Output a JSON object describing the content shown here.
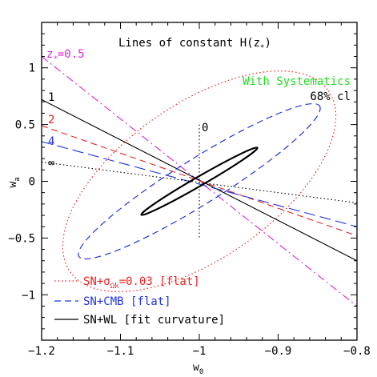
{
  "chart_data": {
    "type": "line",
    "title": "Lines of constant H(z",
    "title_sub": "*",
    "title_end": ")",
    "xlabel": "w",
    "xlabel_sub": "0",
    "ylabel": "w",
    "ylabel_sub": "a",
    "xlim": [
      -1.2,
      -0.8
    ],
    "ylim": [
      -1.4,
      1.4
    ],
    "xticks": [
      -1.2,
      -1.1,
      -1,
      -0.9,
      -0.8
    ],
    "xtick_labels": [
      "−1.2",
      "−1.1",
      "−1",
      "−0.9",
      "−0.8"
    ],
    "yticks": [
      1,
      0.5,
      0,
      -0.5,
      -1
    ],
    "ytick_labels": [
      "1",
      "0.5",
      "0",
      "−0.5",
      "−1"
    ],
    "systematics_label": "With Systematics",
    "systematics_color": "#22dd22",
    "cl_label": "68% cl",
    "lines_of_constant_H": [
      {
        "label": "z",
        "label_sub": "*",
        "label_end": "=0.5",
        "color": "#dd22dd",
        "dash": "dashdot",
        "x": [
          -1.2,
          -0.8
        ],
        "y": [
          1.1,
          -1.1
        ]
      },
      {
        "label": "1",
        "color": "#000000",
        "dash": "solid",
        "x": [
          -1.2,
          -0.8
        ],
        "y": [
          0.72,
          -0.7
        ]
      },
      {
        "label": "2",
        "color": "#ee2222",
        "dash": "dashed",
        "x": [
          -1.2,
          -0.8
        ],
        "y": [
          0.49,
          -0.48
        ]
      },
      {
        "label": "4",
        "color": "#2233dd",
        "dash": "longdash",
        "x": [
          -1.2,
          -0.8
        ],
        "y": [
          0.35,
          -0.4
        ]
      },
      {
        "label": "∞",
        "color": "#000000",
        "dash": "dotted",
        "x": [
          -1.2,
          -0.8
        ],
        "y": [
          0.17,
          -0.19
        ]
      },
      {
        "label": "0",
        "color": "#000000",
        "dash": "dotted",
        "x": [
          -1.0,
          -1.0
        ],
        "y": [
          0.5,
          -0.5
        ]
      }
    ],
    "series": [
      {
        "name": "SN+σ",
        "name_sub": "Ωk",
        "name_end": "=0.03 [flat]",
        "color": "#ee2222",
        "dash": "dotted",
        "center": [
          -1.0,
          0.0
        ],
        "semi_axes": [
          0.2,
          0.68
        ],
        "rotation_deg": -35,
        "stroke_width": 1.2
      },
      {
        "name": "SN+CMB [flat]",
        "color": "#2233dd",
        "dash": "dashed",
        "center": [
          -1.0,
          0.0
        ],
        "semi_axes": [
          0.18,
          0.2
        ],
        "rotation_deg": -32,
        "stroke_width": 1.2
      },
      {
        "name": "SN+WL [fit curvature]",
        "color": "#000000",
        "dash": "solid",
        "center": [
          -1.0,
          0.0
        ],
        "semi_axes": [
          0.085,
          0.04
        ],
        "rotation_deg": -30,
        "stroke_width": 2.2
      }
    ],
    "legend_position": "bottom-left",
    "grid": false
  }
}
